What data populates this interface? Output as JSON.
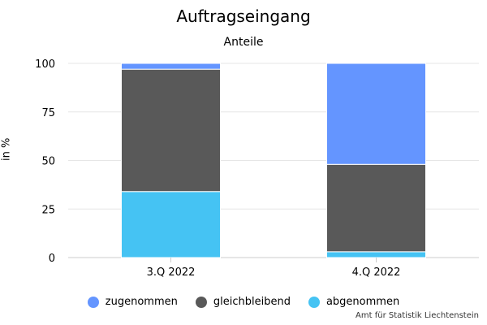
{
  "chart_data": {
    "type": "bar",
    "stacked": true,
    "title": "Auftragseingang",
    "subtitle": "Anteile",
    "xlabel": "",
    "ylabel": "in %",
    "categories": [
      "3.Q 2022",
      "4.Q 2022"
    ],
    "ylim": [
      0,
      100
    ],
    "yticks": [
      0,
      25,
      50,
      75,
      100
    ],
    "grid": true,
    "legend_position": "bottom",
    "series": [
      {
        "name": "zugenommen",
        "color": "#6495ff",
        "values": [
          3,
          52
        ]
      },
      {
        "name": "gleichbleibend",
        "color": "#595959",
        "values": [
          63,
          45
        ]
      },
      {
        "name": "abgenommen",
        "color": "#45c3f3",
        "values": [
          34,
          3
        ]
      }
    ],
    "credits": "Amt für Statistik Liechtenstein"
  }
}
